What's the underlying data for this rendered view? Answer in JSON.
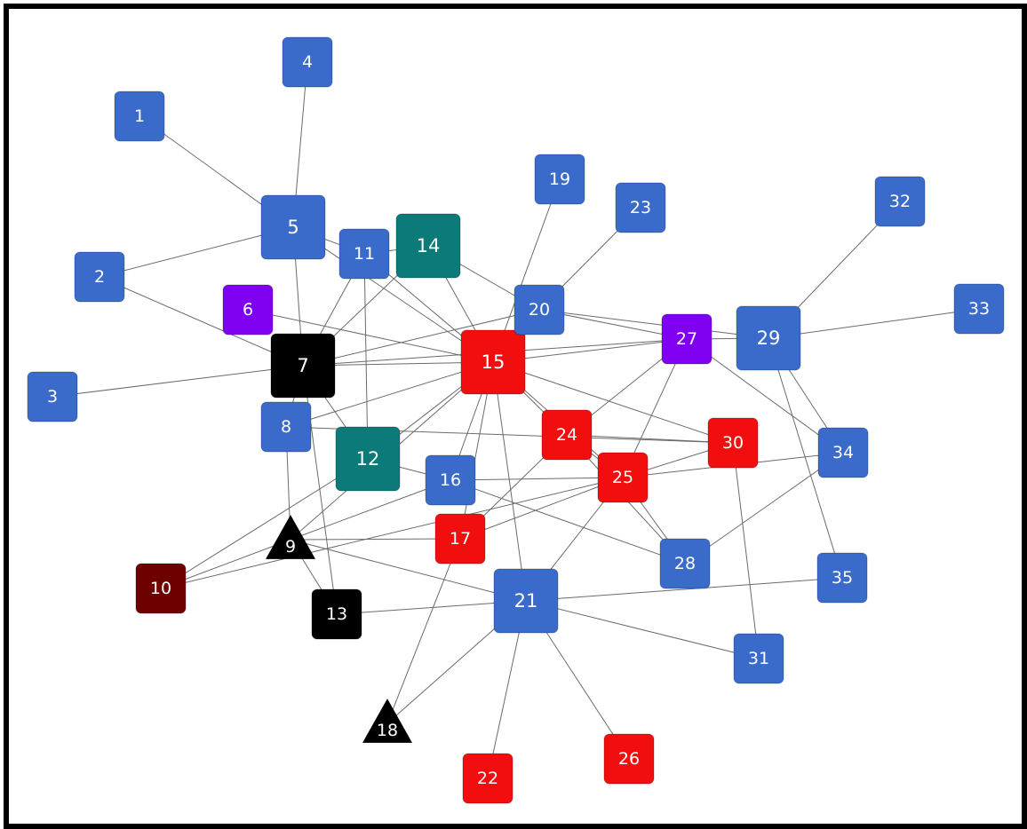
{
  "colors": {
    "blue": "#3a6bcb",
    "red": "#f20e0e",
    "purple": "#7f00f0",
    "teal": "#0c7a78",
    "black": "#000000",
    "maroon": "#6e0000",
    "edge": "#6b6b6b",
    "border": "#000000"
  },
  "nodes": [
    {
      "id": "1",
      "label": "1",
      "color": "blue",
      "shape": "square"
    },
    {
      "id": "2",
      "label": "2",
      "color": "blue",
      "shape": "square"
    },
    {
      "id": "3",
      "label": "3",
      "color": "blue",
      "shape": "square"
    },
    {
      "id": "4",
      "label": "4",
      "color": "blue",
      "shape": "square"
    },
    {
      "id": "5",
      "label": "5",
      "color": "blue",
      "shape": "square"
    },
    {
      "id": "6",
      "label": "6",
      "color": "purple",
      "shape": "square"
    },
    {
      "id": "7",
      "label": "7",
      "color": "black",
      "shape": "square"
    },
    {
      "id": "8",
      "label": "8",
      "color": "blue",
      "shape": "square"
    },
    {
      "id": "9",
      "label": "9",
      "color": "black",
      "shape": "triangle"
    },
    {
      "id": "10",
      "label": "10",
      "color": "maroon",
      "shape": "square"
    },
    {
      "id": "11",
      "label": "11",
      "color": "blue",
      "shape": "square"
    },
    {
      "id": "12",
      "label": "12",
      "color": "teal",
      "shape": "square"
    },
    {
      "id": "13",
      "label": "13",
      "color": "black",
      "shape": "square"
    },
    {
      "id": "14",
      "label": "14",
      "color": "teal",
      "shape": "square"
    },
    {
      "id": "15",
      "label": "15",
      "color": "red",
      "shape": "square"
    },
    {
      "id": "16",
      "label": "16",
      "color": "blue",
      "shape": "square"
    },
    {
      "id": "17",
      "label": "17",
      "color": "red",
      "shape": "square"
    },
    {
      "id": "18",
      "label": "18",
      "color": "black",
      "shape": "triangle"
    },
    {
      "id": "19",
      "label": "19",
      "color": "blue",
      "shape": "square"
    },
    {
      "id": "20",
      "label": "20",
      "color": "blue",
      "shape": "square"
    },
    {
      "id": "21",
      "label": "21",
      "color": "blue",
      "shape": "square"
    },
    {
      "id": "22",
      "label": "22",
      "color": "red",
      "shape": "square"
    },
    {
      "id": "23",
      "label": "23",
      "color": "blue",
      "shape": "square"
    },
    {
      "id": "24",
      "label": "24",
      "color": "red",
      "shape": "square"
    },
    {
      "id": "25",
      "label": "25",
      "color": "red",
      "shape": "square"
    },
    {
      "id": "26",
      "label": "26",
      "color": "red",
      "shape": "square"
    },
    {
      "id": "27",
      "label": "27",
      "color": "purple",
      "shape": "square"
    },
    {
      "id": "28",
      "label": "28",
      "color": "blue",
      "shape": "square"
    },
    {
      "id": "29",
      "label": "29",
      "color": "blue",
      "shape": "square"
    },
    {
      "id": "30",
      "label": "30",
      "color": "red",
      "shape": "square"
    },
    {
      "id": "31",
      "label": "31",
      "color": "blue",
      "shape": "square"
    },
    {
      "id": "32",
      "label": "32",
      "color": "blue",
      "shape": "square"
    },
    {
      "id": "33",
      "label": "33",
      "color": "blue",
      "shape": "square"
    },
    {
      "id": "34",
      "label": "34",
      "color": "blue",
      "shape": "square"
    },
    {
      "id": "35",
      "label": "35",
      "color": "blue",
      "shape": "square"
    }
  ],
  "edges": [
    [
      "1",
      "5"
    ],
    [
      "4",
      "5"
    ],
    [
      "2",
      "5"
    ],
    [
      "2",
      "7"
    ],
    [
      "3",
      "7"
    ],
    [
      "5",
      "7"
    ],
    [
      "5",
      "11"
    ],
    [
      "5",
      "15"
    ],
    [
      "6",
      "15"
    ],
    [
      "11",
      "14"
    ],
    [
      "11",
      "7"
    ],
    [
      "11",
      "15"
    ],
    [
      "11",
      "12"
    ],
    [
      "14",
      "15"
    ],
    [
      "14",
      "20"
    ],
    [
      "14",
      "7"
    ],
    [
      "7",
      "8"
    ],
    [
      "7",
      "12"
    ],
    [
      "7",
      "13"
    ],
    [
      "7",
      "15"
    ],
    [
      "7",
      "20"
    ],
    [
      "7",
      "27"
    ],
    [
      "8",
      "9"
    ],
    [
      "8",
      "30"
    ],
    [
      "8",
      "15"
    ],
    [
      "9",
      "16"
    ],
    [
      "9",
      "17"
    ],
    [
      "9",
      "21"
    ],
    [
      "9",
      "13"
    ],
    [
      "9",
      "15"
    ],
    [
      "10",
      "9"
    ],
    [
      "10",
      "12"
    ],
    [
      "10",
      "25"
    ],
    [
      "12",
      "15"
    ],
    [
      "12",
      "16"
    ],
    [
      "15",
      "16"
    ],
    [
      "15",
      "17"
    ],
    [
      "15",
      "21"
    ],
    [
      "15",
      "24"
    ],
    [
      "15",
      "25"
    ],
    [
      "15",
      "27"
    ],
    [
      "15",
      "30"
    ],
    [
      "15",
      "19"
    ],
    [
      "16",
      "25"
    ],
    [
      "16",
      "28"
    ],
    [
      "17",
      "24"
    ],
    [
      "17",
      "25"
    ],
    [
      "17",
      "18"
    ],
    [
      "18",
      "21"
    ],
    [
      "20",
      "23"
    ],
    [
      "20",
      "27"
    ],
    [
      "20",
      "29"
    ],
    [
      "24",
      "25"
    ],
    [
      "24",
      "30"
    ],
    [
      "24",
      "27"
    ],
    [
      "24",
      "28"
    ],
    [
      "25",
      "27"
    ],
    [
      "25",
      "28"
    ],
    [
      "25",
      "30"
    ],
    [
      "25",
      "34"
    ],
    [
      "25",
      "21"
    ],
    [
      "21",
      "13"
    ],
    [
      "21",
      "22"
    ],
    [
      "21",
      "26"
    ],
    [
      "21",
      "31"
    ],
    [
      "21",
      "35"
    ],
    [
      "27",
      "29"
    ],
    [
      "27",
      "34"
    ],
    [
      "29",
      "32"
    ],
    [
      "29",
      "33"
    ],
    [
      "29",
      "34"
    ],
    [
      "29",
      "35"
    ],
    [
      "30",
      "31"
    ],
    [
      "28",
      "34"
    ]
  ]
}
